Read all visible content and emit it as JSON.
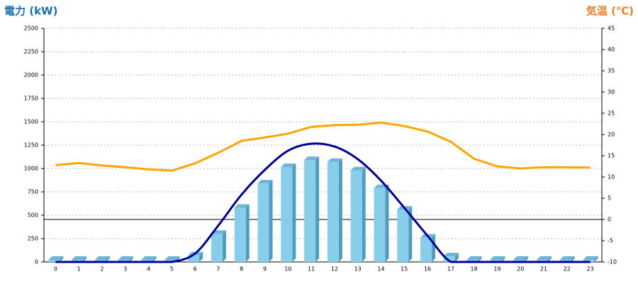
{
  "chart_data": {
    "type": "combo",
    "title": "電力 (kW)",
    "y2_title": "気温 (℃)",
    "categories": [
      "0",
      "1",
      "2",
      "3",
      "4",
      "5",
      "6",
      "7",
      "8",
      "9",
      "10",
      "11",
      "12",
      "13",
      "14",
      "15",
      "16",
      "17",
      "18",
      "19",
      "20",
      "21",
      "22",
      "23"
    ],
    "ylim": [
      0,
      2500
    ],
    "yticks": [
      0,
      250,
      500,
      750,
      1000,
      1250,
      1500,
      1750,
      2000,
      2250,
      2500
    ],
    "y2lim": [
      -10,
      45
    ],
    "y2ticks": [
      -10,
      -5,
      0,
      5,
      10,
      15,
      20,
      25,
      30,
      35,
      40,
      45
    ],
    "grid": true,
    "y2_zero_line": true,
    "series": [
      {
        "type": "bar",
        "color": "#87ceeb",
        "values": [
          0,
          0,
          0,
          0,
          0,
          0,
          70,
          300,
          580,
          840,
          1015,
          1090,
          1070,
          980,
          790,
          560,
          260,
          60,
          0,
          0,
          0,
          0,
          0,
          0
        ]
      },
      {
        "type": "smooth-line",
        "color": "#000099",
        "values": [
          0,
          0,
          0,
          0,
          0,
          0,
          90,
          390,
          720,
          985,
          1190,
          1265,
          1235,
          1100,
          870,
          580,
          280,
          0,
          0,
          0,
          0,
          0,
          0,
          0
        ]
      },
      {
        "type": "line",
        "axis": "y2",
        "color": "#ffa500",
        "values": [
          12.8,
          13.3,
          12.7,
          12.3,
          11.8,
          11.5,
          13.2,
          15.7,
          18.5,
          19.3,
          20.2,
          21.8,
          22.2,
          22.3,
          22.8,
          22,
          20.7,
          18.3,
          14.3,
          12.5,
          12,
          12.3,
          12.3,
          12.2
        ]
      }
    ]
  }
}
